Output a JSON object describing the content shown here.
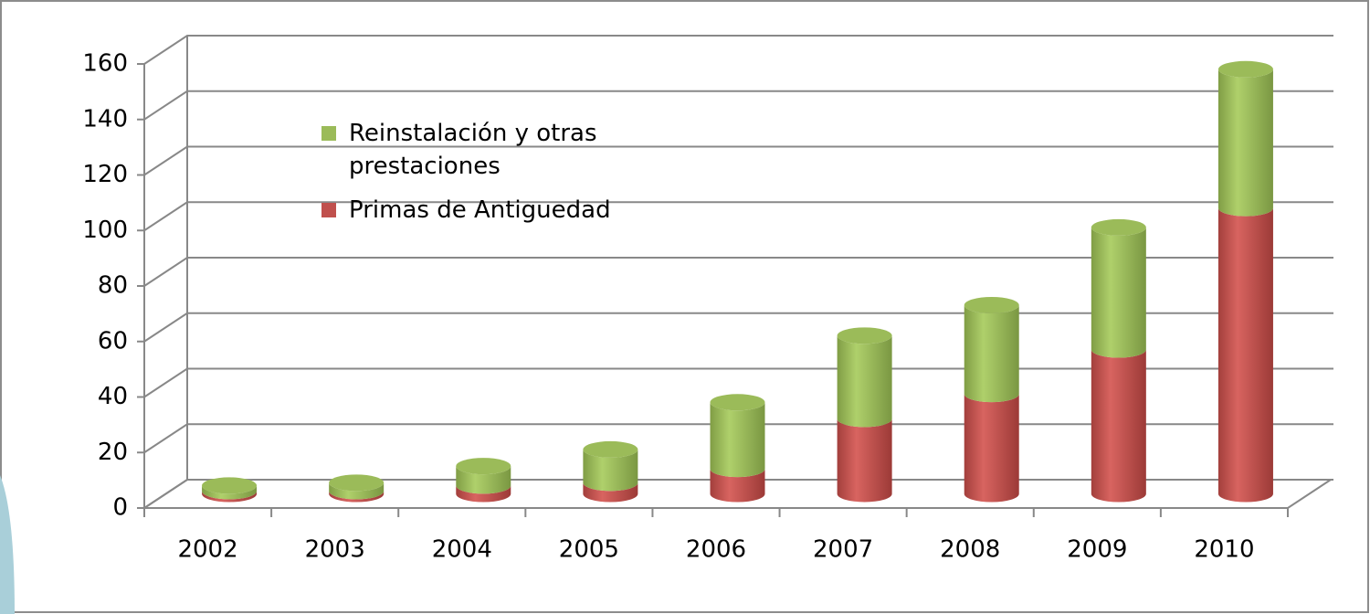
{
  "chart_data": {
    "type": "bar3d_stacked",
    "categories": [
      "2002",
      "2003",
      "2004",
      "2005",
      "2006",
      "2007",
      "2008",
      "2009",
      "2010"
    ],
    "series": [
      {
        "name": "Primas de Antiguedad",
        "color": "#c0504d",
        "values": [
          1,
          1,
          3,
          4,
          9,
          27,
          36,
          52,
          103
        ]
      },
      {
        "name": "Reinstalación y otras prestaciones",
        "color": "#9bbb59",
        "values": [
          2,
          3,
          7,
          12,
          24,
          30,
          32,
          44,
          50
        ]
      }
    ],
    "ylim": [
      0,
      160
    ],
    "yticks": [
      0,
      20,
      40,
      60,
      80,
      100,
      120,
      140,
      160
    ],
    "grid": true
  }
}
